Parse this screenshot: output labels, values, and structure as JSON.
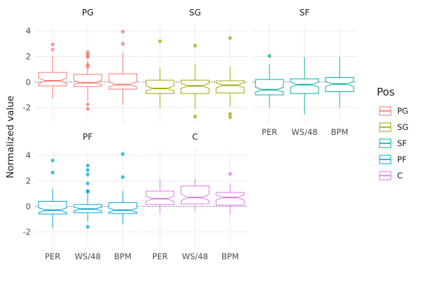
{
  "chart_data": {
    "type": "boxplot",
    "title": "",
    "xlabel": "",
    "ylabel": "Normalized value",
    "ylim": [
      -3.2,
      4.5
    ],
    "y_ticks": [
      -2,
      0,
      2,
      4
    ],
    "reference_line_y": 0,
    "categories": [
      "PER",
      "WS/48",
      "BPM"
    ],
    "legend": {
      "title": "Pos",
      "position": "right",
      "entries": [
        "PG",
        "SG",
        "SF",
        "PF",
        "C"
      ]
    },
    "colors": {
      "PG": "#F8766D",
      "SG": "#A3A500",
      "SF": "#00B0A0",
      "PF": "#00A5D8",
      "C": "#E076E8"
    },
    "facets": [
      {
        "name": "PG",
        "boxes": [
          {
            "category": "PER",
            "q1": -0.3,
            "median": 0.1,
            "q3": 0.75,
            "notch_low": -0.1,
            "notch_high": 0.3,
            "whisker_low": -1.3,
            "whisker_high": 2.1,
            "outliers": [
              2.95,
              2.55
            ]
          },
          {
            "category": "WS/48",
            "q1": -0.35,
            "median": -0.05,
            "q3": 0.6,
            "notch_low": -0.2,
            "notch_high": 0.12,
            "whisker_low": -1.5,
            "whisker_high": 1.75,
            "outliers": [
              2.35,
              2.2,
              2.05,
              1.95,
              1.35,
              1.2,
              -1.75,
              -2.1
            ]
          },
          {
            "category": "BPM",
            "q1": -0.55,
            "median": -0.2,
            "q3": 0.65,
            "notch_low": -0.4,
            "notch_high": 0.05,
            "whisker_low": -1.8,
            "whisker_high": 2.3,
            "outliers": [
              3.95,
              3.0
            ]
          }
        ]
      },
      {
        "name": "SG",
        "boxes": [
          {
            "category": "PER",
            "q1": -0.9,
            "median": -0.5,
            "q3": 0.15,
            "notch_low": -0.7,
            "notch_high": -0.3,
            "whisker_low": -2.0,
            "whisker_high": 1.1,
            "outliers": [
              3.2
            ]
          },
          {
            "category": "WS/48",
            "q1": -0.9,
            "median": -0.3,
            "q3": 0.15,
            "notch_low": -0.5,
            "notch_high": -0.1,
            "whisker_low": -2.1,
            "whisker_high": 1.4,
            "outliers": [
              2.85,
              -2.7
            ]
          },
          {
            "category": "BPM",
            "q1": -0.85,
            "median": -0.25,
            "q3": 0.1,
            "notch_low": -0.45,
            "notch_high": -0.05,
            "whisker_low": -1.9,
            "whisker_high": 1.2,
            "outliers": [
              3.45,
              -2.5,
              -2.75
            ]
          }
        ]
      },
      {
        "name": "SF",
        "boxes": [
          {
            "category": "PER",
            "q1": -1.0,
            "median": -0.6,
            "q3": 0.2,
            "notch_low": -0.8,
            "notch_high": -0.4,
            "whisker_low": -2.0,
            "whisker_high": 1.4,
            "outliers": [
              2.05
            ]
          },
          {
            "category": "WS/48",
            "q1": -0.9,
            "median": -0.2,
            "q3": 0.25,
            "notch_low": -0.4,
            "notch_high": 0.0,
            "whisker_low": -2.5,
            "whisker_high": 1.95,
            "outliers": []
          },
          {
            "category": "BPM",
            "q1": -0.75,
            "median": -0.15,
            "q3": 0.35,
            "notch_low": -0.35,
            "notch_high": 0.05,
            "whisker_low": -2.0,
            "whisker_high": 1.95,
            "outliers": []
          }
        ]
      },
      {
        "name": "PF",
        "boxes": [
          {
            "category": "PER",
            "q1": -0.6,
            "median": -0.3,
            "q3": 0.4,
            "notch_low": -0.5,
            "notch_high": -0.1,
            "whisker_low": -1.7,
            "whisker_high": 1.4,
            "outliers": [
              3.6,
              2.65
            ]
          },
          {
            "category": "WS/48",
            "q1": -0.5,
            "median": -0.2,
            "q3": 0.15,
            "notch_low": -0.35,
            "notch_high": -0.05,
            "whisker_low": -1.2,
            "whisker_high": 1.0,
            "outliers": [
              3.2,
              2.85,
              2.5,
              1.8,
              1.2,
              1.15,
              -1.6
            ]
          },
          {
            "category": "BPM",
            "q1": -0.55,
            "median": -0.3,
            "q3": 0.3,
            "notch_low": -0.45,
            "notch_high": -0.15,
            "whisker_low": -1.4,
            "whisker_high": 1.2,
            "outliers": [
              4.1,
              2.3
            ]
          }
        ]
      },
      {
        "name": "C",
        "boxes": [
          {
            "category": "PER",
            "q1": 0.15,
            "median": 0.6,
            "q3": 1.2,
            "notch_low": 0.4,
            "notch_high": 0.8,
            "whisker_low": -0.6,
            "whisker_high": 2.1,
            "outliers": []
          },
          {
            "category": "WS/48",
            "q1": 0.2,
            "median": 0.7,
            "q3": 1.6,
            "notch_low": 0.45,
            "notch_high": 0.95,
            "whisker_low": -0.4,
            "whisker_high": 2.2,
            "outliers": []
          },
          {
            "category": "BPM",
            "q1": 0.1,
            "median": 0.7,
            "q3": 1.1,
            "notch_low": 0.5,
            "notch_high": 0.9,
            "whisker_low": -0.6,
            "whisker_high": 1.8,
            "outliers": [
              2.55
            ]
          }
        ]
      }
    ]
  }
}
